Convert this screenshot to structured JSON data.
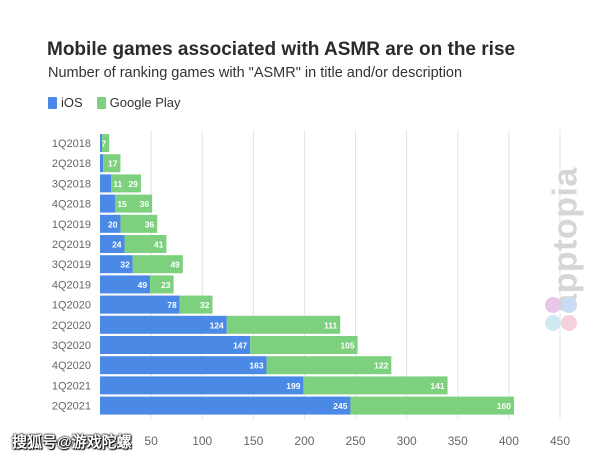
{
  "chart_data": {
    "type": "bar",
    "orientation": "horizontal",
    "stacked": true,
    "title": "Mobile games associated with ASMR are on the rise",
    "subtitle": "Number of ranking games with \"ASMR\" in title and/or description",
    "categories": [
      "1Q2018",
      "2Q2018",
      "3Q2018",
      "4Q2018",
      "1Q2019",
      "2Q2019",
      "3Q2019",
      "4Q2019",
      "1Q2020",
      "2Q2020",
      "3Q2020",
      "4Q2020",
      "1Q2021",
      "2Q2021"
    ],
    "series": [
      {
        "name": "iOS",
        "color": "#4a89e6",
        "values": [
          2,
          3,
          11,
          15,
          20,
          24,
          32,
          49,
          78,
          124,
          147,
          163,
          199,
          245
        ]
      },
      {
        "name": "Google Play",
        "color": "#7dd17e",
        "values": [
          7,
          17,
          29,
          36,
          36,
          41,
          49,
          23,
          32,
          111,
          105,
          122,
          141,
          160
        ]
      }
    ],
    "value_labels": {
      "iOS": [
        "",
        "",
        "11",
        "15",
        "20",
        "24",
        "32",
        "49",
        "78",
        "124",
        "147",
        "163",
        "199",
        "245"
      ],
      "Google Play": [
        "7",
        "17",
        "29",
        "36",
        "36",
        "41",
        "49",
        "23",
        "32",
        "111",
        "105",
        "122",
        "141",
        "160"
      ]
    },
    "x_ticks": [
      50,
      100,
      150,
      200,
      250,
      300,
      350,
      400,
      450
    ],
    "xlim": [
      0,
      450
    ],
    "xlabel": "",
    "ylabel": "",
    "legend_position": "top-left",
    "grid": true
  },
  "branding": {
    "logo_text": "apptopia",
    "watermark": "搜狐号@游戏陀螺"
  }
}
